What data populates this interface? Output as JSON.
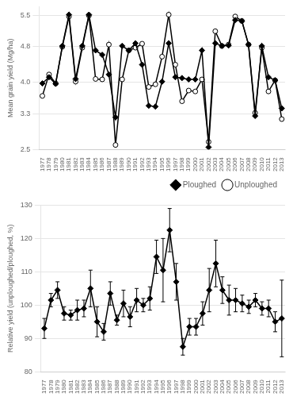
{
  "chart_data": [
    {
      "type": "line",
      "categories": [
        "1977",
        "1978",
        "1979",
        "1980",
        "1981",
        "1982",
        "1983",
        "1984",
        "1985",
        "1986",
        "1987",
        "1988",
        "1989",
        "1990",
        "1991",
        "1992",
        "1993",
        "1994",
        "1995",
        "1996",
        "1997",
        "1998",
        "1999",
        "2000",
        "2001",
        "2002",
        "2003",
        "2004",
        "2005",
        "2006",
        "2007",
        "2008",
        "2009",
        "2010",
        "2011",
        "2012",
        "2013"
      ],
      "series": [
        {
          "name": "Ploughed",
          "color": "#000000",
          "marker": "diamond",
          "values": [
            3.98,
            4.12,
            3.97,
            4.82,
            5.52,
            4.08,
            4.82,
            5.52,
            4.72,
            4.62,
            4.18,
            3.22,
            4.82,
            4.72,
            4.88,
            4.4,
            3.48,
            3.46,
            4.02,
            4.88,
            4.12,
            4.1,
            4.07,
            4.07,
            4.72,
            2.55,
            4.88,
            4.82,
            4.83,
            5.4,
            5.38,
            4.85,
            3.25,
            4.82,
            4.12,
            4.05,
            3.42
          ]
        },
        {
          "name": "Unploughed",
          "color": "#000000",
          "marker": "open_circle",
          "values": [
            3.7,
            4.18,
            3.98,
            4.8,
            5.48,
            4.02,
            4.78,
            5.5,
            4.08,
            4.07,
            4.85,
            2.6,
            4.07,
            4.72,
            4.78,
            4.87,
            3.9,
            3.96,
            4.58,
            5.52,
            4.4,
            3.58,
            3.82,
            3.8,
            4.07,
            2.67,
            5.15,
            4.82,
            4.85,
            5.48,
            5.38,
            4.85,
            3.32,
            4.78,
            3.8,
            4.05,
            3.18
          ]
        }
      ],
      "ylabel": "Mean grain yield (Mg/ha)",
      "ylim": [
        2.5,
        5.7
      ],
      "yticks": [
        2.5,
        3.3,
        {
          "value": 4.0,
          "label": "4.0"
        },
        4.8,
        5.5
      ],
      "grid": true,
      "legend": "lower right"
    },
    {
      "type": "line",
      "categories": [
        "1977",
        "1978",
        "1979",
        "1980",
        "1981",
        "1982",
        "1983",
        "1984",
        "1985",
        "1986",
        "1987",
        "1988",
        "1989",
        "1990",
        "1991",
        "1992",
        "1993",
        "1994",
        "1995",
        "1996",
        "1997",
        "1998",
        "1999",
        "2000",
        "2001",
        "2002",
        "2003",
        "2004",
        "2005",
        "2006",
        "2007",
        "2008",
        "2009",
        "2010",
        "2011",
        "2012",
        "2013"
      ],
      "values": [
        93.0,
        101.5,
        104.5,
        97.5,
        97.0,
        98.5,
        99.0,
        105.0,
        95.0,
        92.0,
        103.5,
        95.5,
        100.5,
        96.5,
        101.5,
        100.0,
        102.0,
        114.5,
        110.5,
        122.5,
        107.0,
        87.5,
        93.5,
        93.5,
        97.5,
        104.5,
        112.5,
        104.5,
        101.5,
        101.5,
        100.5,
        99.5,
        101.5,
        99.0,
        99.0,
        95.0,
        96.0
      ],
      "errors": [
        3.0,
        2.0,
        2.5,
        2.0,
        1.5,
        3.0,
        2.5,
        5.5,
        4.5,
        2.5,
        3.5,
        1.5,
        4.0,
        3.0,
        3.5,
        2.0,
        3.5,
        5.0,
        9.5,
        6.5,
        5.5,
        2.5,
        2.5,
        2.5,
        3.5,
        6.5,
        7.0,
        4.0,
        4.5,
        3.5,
        2.5,
        2.0,
        2.0,
        2.0,
        2.5,
        3.0,
        11.5
      ],
      "color": "#000000",
      "marker": "diamond",
      "ylabel": "Relative yield (unploughed/ploughed, %)",
      "ylim": [
        80,
        130
      ],
      "yticks": [
        80,
        90,
        100,
        110,
        120,
        130
      ],
      "grid": true
    }
  ]
}
